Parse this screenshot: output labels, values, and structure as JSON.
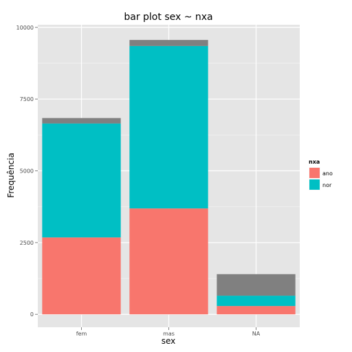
{
  "chart_data": {
    "type": "bar",
    "stacked": true,
    "title": "bar plot sex ~ nxa",
    "xlabel": "sex",
    "ylabel": "Frequência",
    "categories": [
      "fem",
      "mas",
      "NA"
    ],
    "ylim": [
      0,
      10000
    ],
    "yticks": [
      0,
      2500,
      5000,
      7500,
      10000
    ],
    "grid": true,
    "legend": {
      "title": "nxa",
      "position": "right",
      "entries": [
        {
          "label": "ano",
          "color": "#F8766D"
        },
        {
          "label": "nor",
          "color": "#00BFC4"
        }
      ]
    },
    "series": [
      {
        "name": "ano",
        "color": "#F8766D",
        "values": [
          2680,
          3690,
          290
        ]
      },
      {
        "name": "nor",
        "color": "#00BFC4",
        "values": [
          3970,
          5660,
          360
        ]
      },
      {
        "color": "#808080",
        "values": [
          190,
          210,
          750
        ]
      }
    ],
    "background_color": "#E5E5E5",
    "grid_color": "#FFFFFF"
  }
}
